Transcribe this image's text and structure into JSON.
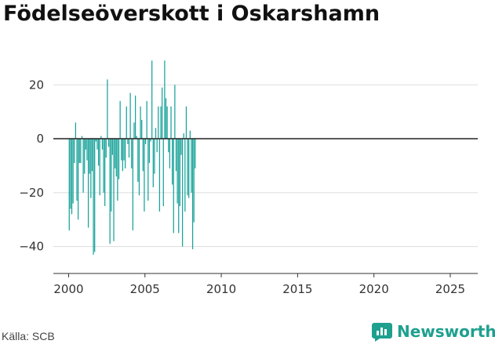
{
  "title": "Födelseöverskott i Oskarshamn",
  "source": "Källa: SCB",
  "brand": "Newsworthy",
  "colors": {
    "bar": "#1aa39a",
    "zero_line": "#222222",
    "grid": "#dddddd",
    "brand": "#1ea08e"
  },
  "chart_data": {
    "type": "bar",
    "title": "Födelseöverskott i Oskarshamn",
    "xlabel": "",
    "ylabel": "",
    "xlim": [
      1999.0,
      2026.8
    ],
    "ylim": [
      -50,
      32
    ],
    "yticks": [
      -40,
      -20,
      0,
      20
    ],
    "ytick_labels": [
      "−40",
      "−20",
      "0",
      "20"
    ],
    "xticks": [
      2000,
      2005,
      2010,
      2015,
      2020,
      2025
    ],
    "xtick_labels": [
      "2000",
      "2005",
      "2010",
      "2015",
      "2020",
      "2025"
    ],
    "grid": true,
    "start": "2000-01",
    "frequency": "month",
    "values": [
      -34,
      -26,
      -28,
      -24,
      -9,
      6,
      -23,
      -30,
      -9,
      -9,
      1,
      -20,
      -13,
      -4,
      -8,
      -33,
      -13,
      -22,
      -12,
      -43,
      -42,
      -1,
      -4,
      -10,
      -21,
      1,
      -4,
      -20,
      -25,
      -7,
      22,
      -3,
      -39,
      -27,
      -6,
      -38,
      -11,
      -14,
      -23,
      -15,
      14,
      -8,
      -12,
      -8,
      -11,
      12,
      -2,
      -7,
      17,
      -11,
      -34,
      6,
      16,
      1,
      -16,
      -21,
      12,
      7,
      -12,
      -27,
      -2,
      14,
      -23,
      -9,
      -1,
      29,
      -18,
      -13,
      4,
      -5,
      12,
      -27,
      12,
      19,
      -25,
      29,
      15,
      12,
      -5,
      -11,
      12,
      -17,
      -35,
      20,
      -12,
      -24,
      -35,
      -25,
      -6,
      -40,
      2,
      -27,
      12,
      -21,
      -22,
      3,
      -20,
      -41,
      -31,
      -11
    ]
  }
}
